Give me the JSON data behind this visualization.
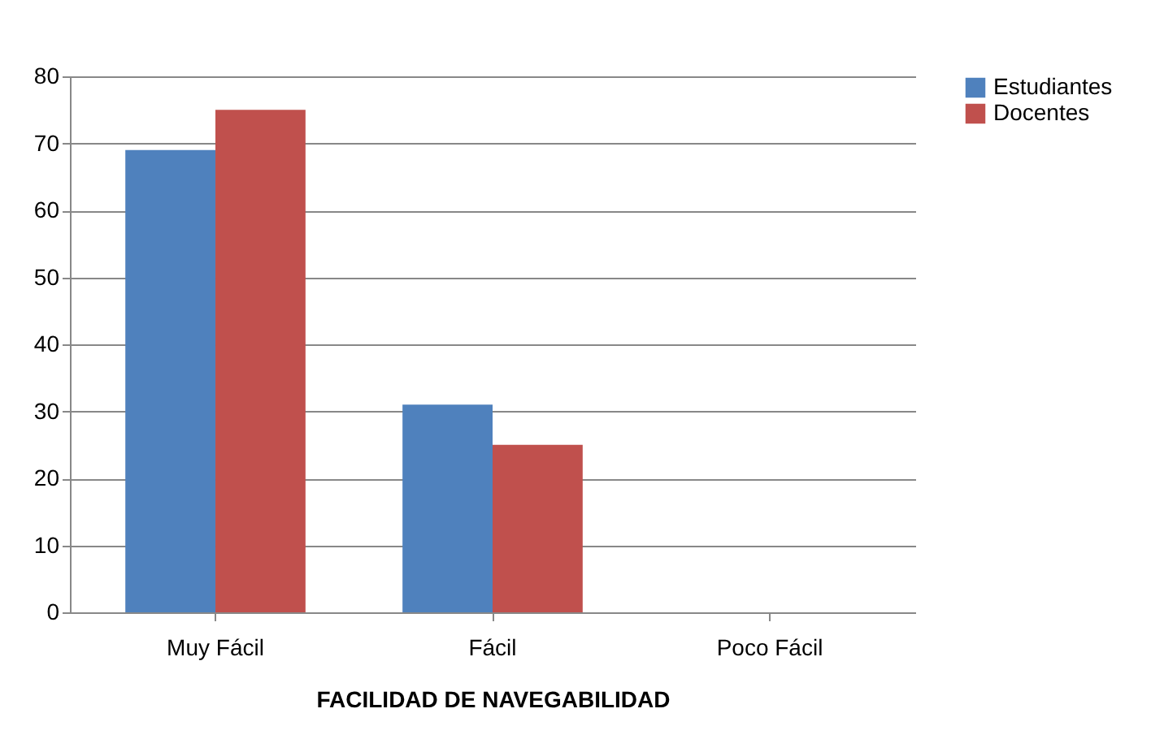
{
  "chart_data": {
    "type": "bar",
    "xlabel": "FACILIDAD DE NAVEGABILIDAD",
    "categories": [
      "Muy Fácil",
      "Fácil",
      "Poco Fácil"
    ],
    "series": [
      {
        "name": "Estudiantes",
        "color": "#4f81bd",
        "values": [
          69,
          31,
          0
        ]
      },
      {
        "name": "Docentes",
        "color": "#c0504d",
        "values": [
          75,
          25,
          0
        ]
      }
    ],
    "ylim": [
      0,
      80
    ],
    "yticks": [
      0,
      10,
      20,
      30,
      40,
      50,
      60,
      70,
      80
    ],
    "grid": "y",
    "legend": "right"
  }
}
